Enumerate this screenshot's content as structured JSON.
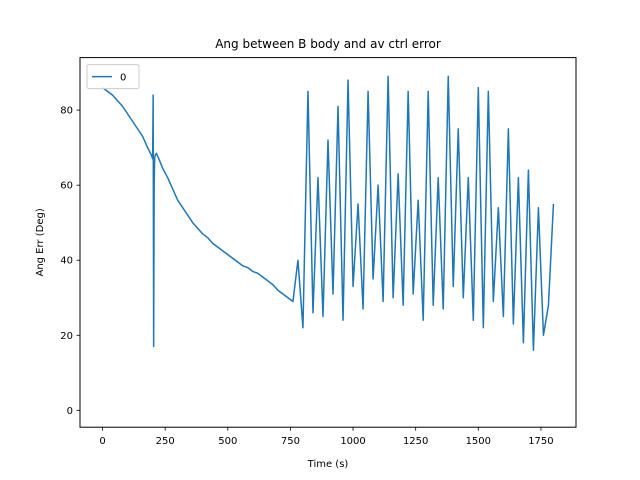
{
  "chart_data": {
    "type": "line",
    "title": "Ang between B body and av ctrl error",
    "xlabel": "Time (s)",
    "ylabel": "Ang Err (Deg)",
    "xlim": [
      -90,
      1890
    ],
    "ylim": [
      -4.5,
      94
    ],
    "xticks": [
      0,
      250,
      500,
      750,
      1000,
      1250,
      1500,
      1750
    ],
    "yticks": [
      0,
      20,
      40,
      60,
      80
    ],
    "grid": false,
    "legend_position": "top-left",
    "series": [
      {
        "name": "0",
        "color": "#1f77b4",
        "x": [
          0,
          20,
          40,
          60,
          80,
          100,
          120,
          140,
          160,
          180,
          195,
          200,
          202,
          204,
          206,
          208,
          210,
          215,
          225,
          240,
          260,
          280,
          300,
          320,
          340,
          360,
          380,
          400,
          420,
          440,
          460,
          480,
          500,
          520,
          540,
          560,
          580,
          600,
          620,
          640,
          660,
          680,
          700,
          720,
          740,
          760,
          780,
          800,
          820,
          840,
          860,
          880,
          900,
          920,
          940,
          960,
          980,
          1000,
          1020,
          1040,
          1060,
          1080,
          1100,
          1120,
          1140,
          1160,
          1180,
          1200,
          1220,
          1240,
          1260,
          1280,
          1300,
          1320,
          1340,
          1360,
          1380,
          1400,
          1420,
          1440,
          1460,
          1480,
          1500,
          1520,
          1540,
          1560,
          1580,
          1600,
          1620,
          1640,
          1660,
          1680,
          1700,
          1720,
          1740,
          1760,
          1780,
          1800
        ],
        "y": [
          86,
          85,
          84,
          82.5,
          81,
          79,
          77,
          75,
          73,
          70,
          68,
          67,
          84,
          17,
          60,
          67,
          68,
          68.5,
          67,
          64.5,
          62,
          59,
          56,
          54,
          52,
          50,
          48.5,
          47,
          46,
          44.5,
          43.5,
          42.5,
          41.5,
          40.5,
          39.5,
          38.5,
          38,
          37,
          36.5,
          35.5,
          34.5,
          33.5,
          32,
          31,
          30,
          29,
          40,
          22,
          85,
          26,
          62,
          25,
          72,
          31,
          81,
          24,
          88,
          33,
          55,
          27,
          85,
          35,
          60,
          29,
          89,
          30,
          63,
          28,
          85,
          31,
          56,
          24,
          85,
          28,
          62,
          27,
          89,
          33,
          75,
          30,
          62,
          24,
          86,
          22,
          85,
          29,
          54,
          25,
          75,
          23,
          62,
          18,
          64,
          16,
          54,
          20,
          28,
          55
        ]
      }
    ]
  }
}
